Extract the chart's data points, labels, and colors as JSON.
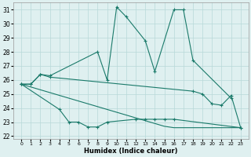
{
  "xlabel": "Humidex (Indice chaleur)",
  "x": [
    0,
    1,
    2,
    3,
    4,
    5,
    6,
    7,
    8,
    9,
    10,
    11,
    12,
    13,
    14,
    15,
    16,
    17,
    18,
    19,
    20,
    21,
    22,
    23
  ],
  "line1_x": [
    0,
    1,
    2,
    3,
    8,
    9,
    10,
    11,
    13,
    14,
    16,
    17,
    18,
    22
  ],
  "line1_y": [
    25.7,
    25.7,
    26.4,
    26.3,
    28.0,
    26.0,
    31.2,
    30.5,
    28.8,
    26.6,
    31.0,
    31.0,
    27.4,
    24.7
  ],
  "line2_x": [
    0,
    1,
    2,
    3,
    18,
    19,
    20,
    21,
    22,
    23
  ],
  "line2_y": [
    25.7,
    25.7,
    26.4,
    26.2,
    25.2,
    25.0,
    24.3,
    24.2,
    24.9,
    22.6
  ],
  "line3_x": [
    0,
    4,
    5,
    6,
    7,
    8,
    9,
    12,
    13,
    14,
    15,
    16,
    23
  ],
  "line3_y": [
    25.7,
    23.9,
    23.0,
    23.0,
    22.65,
    22.65,
    23.0,
    23.2,
    23.2,
    23.2,
    23.2,
    23.2,
    22.6
  ],
  "line4_x": [
    0,
    1,
    2,
    3,
    4,
    5,
    6,
    7,
    8,
    9,
    10,
    11,
    12,
    13,
    14,
    15,
    16,
    17,
    18,
    19,
    20,
    21,
    22,
    23
  ],
  "line4_y": [
    25.7,
    25.5,
    25.3,
    25.1,
    24.9,
    24.7,
    24.5,
    24.3,
    24.1,
    23.9,
    23.7,
    23.5,
    23.3,
    23.1,
    22.9,
    22.7,
    22.6,
    22.6,
    22.6,
    22.6,
    22.6,
    22.6,
    22.6,
    22.6
  ],
  "bg_color": "#dff0f0",
  "line_color": "#1a7a6a",
  "grid_color": "#b8d8d8",
  "ylim": [
    21.8,
    31.5
  ],
  "yticks": [
    22,
    23,
    24,
    25,
    26,
    27,
    28,
    29,
    30,
    31
  ],
  "xticks": [
    0,
    1,
    2,
    3,
    4,
    5,
    6,
    7,
    8,
    9,
    10,
    11,
    12,
    13,
    14,
    15,
    16,
    17,
    18,
    19,
    20,
    21,
    22,
    23
  ]
}
